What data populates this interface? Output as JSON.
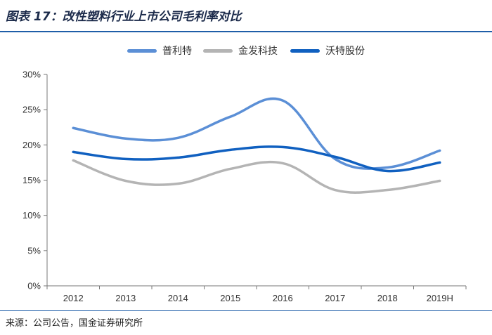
{
  "header": {
    "title": "图表 17：改性塑料行业上市公司毛利率对比"
  },
  "footer": {
    "source": "来源：公司公告，国金证券研究所"
  },
  "chart_data": {
    "type": "line",
    "categories": [
      "2012",
      "2013",
      "2014",
      "2015",
      "2016",
      "2017",
      "2018",
      "2019H"
    ],
    "y_ticks": [
      "0%",
      "5%",
      "10%",
      "15%",
      "20%",
      "25%",
      "30%"
    ],
    "ylim": [
      0,
      30
    ],
    "grid": false,
    "legend_position": "top-center",
    "series": [
      {
        "name": "普利特",
        "color": "#5b8fd6",
        "values": [
          22.4,
          20.9,
          21.0,
          24.0,
          26.3,
          18.0,
          16.8,
          19.2
        ]
      },
      {
        "name": "金发科技",
        "color": "#b4b4b4",
        "values": [
          17.8,
          14.9,
          14.5,
          16.6,
          17.4,
          13.6,
          13.6,
          14.9
        ]
      },
      {
        "name": "沃特股份",
        "color": "#1060c0",
        "values": [
          19.0,
          18.0,
          18.2,
          19.3,
          19.7,
          18.3,
          16.3,
          17.5
        ]
      }
    ]
  }
}
